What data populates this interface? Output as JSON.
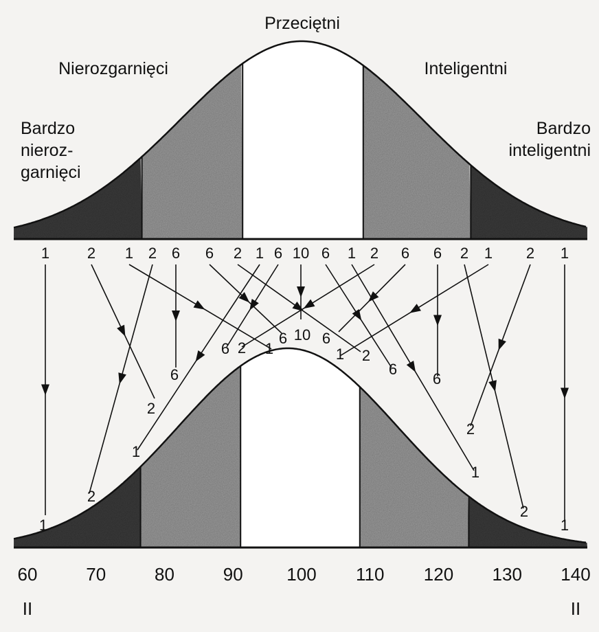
{
  "group_labels": [
    {
      "lines": [
        "Przeciętni"
      ]
    },
    {
      "lines": [
        "Nierozgarnięci"
      ]
    },
    {
      "lines": [
        "Inteligentni"
      ]
    },
    {
      "lines": [
        "Bardzo",
        "nieroz-",
        "garnięci"
      ]
    },
    {
      "lines": [
        "Bardzo",
        "inteligentni"
      ]
    }
  ],
  "top_numbers": [
    "1",
    "2",
    "1",
    "2",
    "6",
    "6",
    "2",
    "1",
    "6",
    "10",
    "6",
    "1",
    "2",
    "6",
    "6",
    "2",
    "1",
    "2",
    "1"
  ],
  "end_numbers": [
    "1",
    "2",
    "1",
    "2",
    "6",
    "6",
    "2",
    "1",
    "6",
    "10",
    "6",
    "1",
    "2",
    "6",
    "6",
    "2",
    "1",
    "2",
    "1"
  ],
  "axis_ticks": [
    60,
    70,
    80,
    90,
    100,
    110,
    120,
    130,
    140
  ],
  "end_marks": [
    "II",
    "II"
  ]
}
